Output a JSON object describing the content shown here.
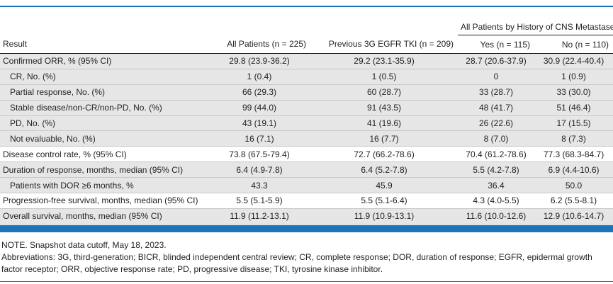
{
  "table": {
    "group_header": "All Patients by History of CNS Metastases",
    "columns": [
      "Result",
      "All Patients (n = 225)",
      "Previous 3G EGFR TKI (n = 209)",
      "Yes (n = 115)",
      "No (n = 110)"
    ],
    "rows": [
      {
        "label": "Confirmed ORR, % (95% CI)",
        "cells": [
          "29.8 (23.9-36.2)",
          "29.2 (23.1-35.9)",
          "28.7 (20.6-37.9)",
          "30.9 (22.4-40.4)"
        ]
      },
      {
        "label": "CR, No. (%)",
        "cells": [
          "1 (0.4)",
          "1 (0.5)",
          "0",
          "1 (0.9)"
        ]
      },
      {
        "label": "Partial response, No. (%)",
        "cells": [
          "66 (29.3)",
          "60 (28.7)",
          "33 (28.7)",
          "33 (30.0)"
        ]
      },
      {
        "label": "Stable disease/non-CR/non-PD, No. (%)",
        "cells": [
          "99 (44.0)",
          "91 (43.5)",
          "48 (41.7)",
          "51 (46.4)"
        ]
      },
      {
        "label": "PD, No. (%)",
        "cells": [
          "43 (19.1)",
          "41 (19.6)",
          "26 (22.6)",
          "17 (15.5)"
        ]
      },
      {
        "label": "Not evaluable, No. (%)",
        "cells": [
          "16 (7.1)",
          "16 (7.7)",
          "8 (7.0)",
          "8 (7.3)"
        ]
      },
      {
        "label": "Disease control rate, % (95% CI)",
        "cells": [
          "73.8 (67.5-79.4)",
          "72.7 (66.2-78.6)",
          "70.4 (61.2-78.6)",
          "77.3 (68.3-84.7)"
        ]
      },
      {
        "label": "Duration of response, months, median (95% CI)",
        "cells": [
          "6.4 (4.9-7.8)",
          "6.4 (5.2-7.8)",
          "5.5 (4.2-7.8)",
          "6.9 (4.4-10.6)"
        ]
      },
      {
        "label": "Patients with DOR ≥6 months, %",
        "cells": [
          "43.3",
          "45.9",
          "36.4",
          "50.0"
        ]
      },
      {
        "label": "Progression-free survival, months, median (95% CI)",
        "cells": [
          "5.5 (5.1-5.9)",
          "5.5 (5.1-6.4)",
          "4.3 (4.0-5.5)",
          "6.2 (5.5-8.1)"
        ]
      },
      {
        "label": "Overall survival, months, median (95% CI)",
        "cells": [
          "11.9 (11.2-13.1)",
          "11.9 (10.9-13.1)",
          "11.6 (10.0-12.6)",
          "12.9 (10.6-14.7)"
        ]
      }
    ]
  },
  "notes": {
    "note": "NOTE. Snapshot data cutoff, May 18, 2023.",
    "abbreviations": "Abbreviations: 3G, third-generation; BICR, blinded independent central review; CR, complete response; DOR, duration of response; EGFR, epidermal growth factor receptor; ORR, objective response rate; PD, progressive disease; TKI, tyrosine kinase inhibitor."
  },
  "colors": {
    "accent": "#1b75bb",
    "row_shade": "#e6e6e6"
  }
}
